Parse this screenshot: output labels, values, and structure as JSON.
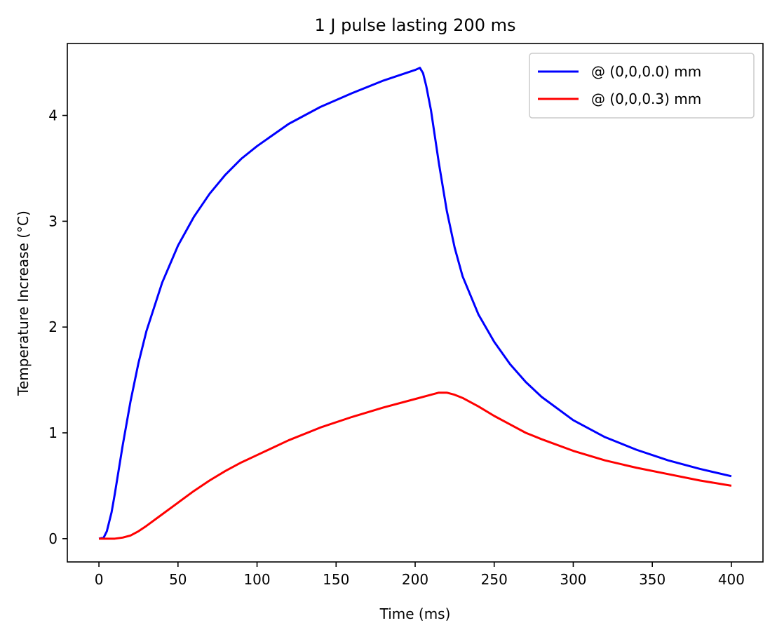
{
  "chart_data": {
    "type": "line",
    "title": "1 J pulse lasting 200 ms",
    "xlabel": "Time (ms)",
    "ylabel": "Temperature Increase (°C)",
    "xlim": [
      -20,
      420
    ],
    "ylim": [
      -0.22,
      4.68
    ],
    "xticks": [
      0,
      50,
      100,
      150,
      200,
      250,
      300,
      350,
      400
    ],
    "xtick_labels": [
      "0",
      "50",
      "100",
      "150",
      "200",
      "250",
      "300",
      "350",
      "400"
    ],
    "yticks": [
      0,
      1,
      2,
      3,
      4
    ],
    "ytick_labels": [
      "0",
      "1",
      "2",
      "3",
      "4"
    ],
    "grid": false,
    "legend_position": "upper-right",
    "series": [
      {
        "name": "@ (0,0,0.0) mm",
        "color": "#0000ff",
        "x": [
          0,
          3,
          5,
          8,
          10,
          15,
          20,
          25,
          30,
          40,
          50,
          60,
          70,
          80,
          90,
          100,
          120,
          140,
          160,
          180,
          200,
          203,
          205,
          207,
          210,
          215,
          220,
          225,
          230,
          240,
          250,
          260,
          270,
          280,
          300,
          320,
          340,
          360,
          380,
          400
        ],
        "y": [
          0,
          0.01,
          0.07,
          0.25,
          0.42,
          0.88,
          1.3,
          1.66,
          1.96,
          2.42,
          2.77,
          3.04,
          3.26,
          3.44,
          3.59,
          3.71,
          3.92,
          4.08,
          4.21,
          4.33,
          4.43,
          4.45,
          4.4,
          4.28,
          4.05,
          3.55,
          3.1,
          2.75,
          2.48,
          2.12,
          1.86,
          1.65,
          1.48,
          1.34,
          1.12,
          0.96,
          0.84,
          0.74,
          0.66,
          0.59
        ]
      },
      {
        "name": "@ (0,0,0.3) mm",
        "color": "#ff0000",
        "x": [
          0,
          5,
          10,
          15,
          20,
          25,
          30,
          40,
          50,
          60,
          70,
          80,
          90,
          100,
          120,
          140,
          160,
          180,
          200,
          210,
          215,
          220,
          225,
          230,
          240,
          250,
          260,
          270,
          280,
          300,
          320,
          340,
          360,
          380,
          400
        ],
        "y": [
          0,
          0,
          0,
          0.01,
          0.03,
          0.07,
          0.12,
          0.23,
          0.34,
          0.45,
          0.55,
          0.64,
          0.72,
          0.79,
          0.93,
          1.05,
          1.15,
          1.24,
          1.32,
          1.36,
          1.38,
          1.38,
          1.36,
          1.33,
          1.25,
          1.16,
          1.08,
          1.0,
          0.94,
          0.83,
          0.74,
          0.67,
          0.61,
          0.55,
          0.5
        ]
      }
    ]
  }
}
